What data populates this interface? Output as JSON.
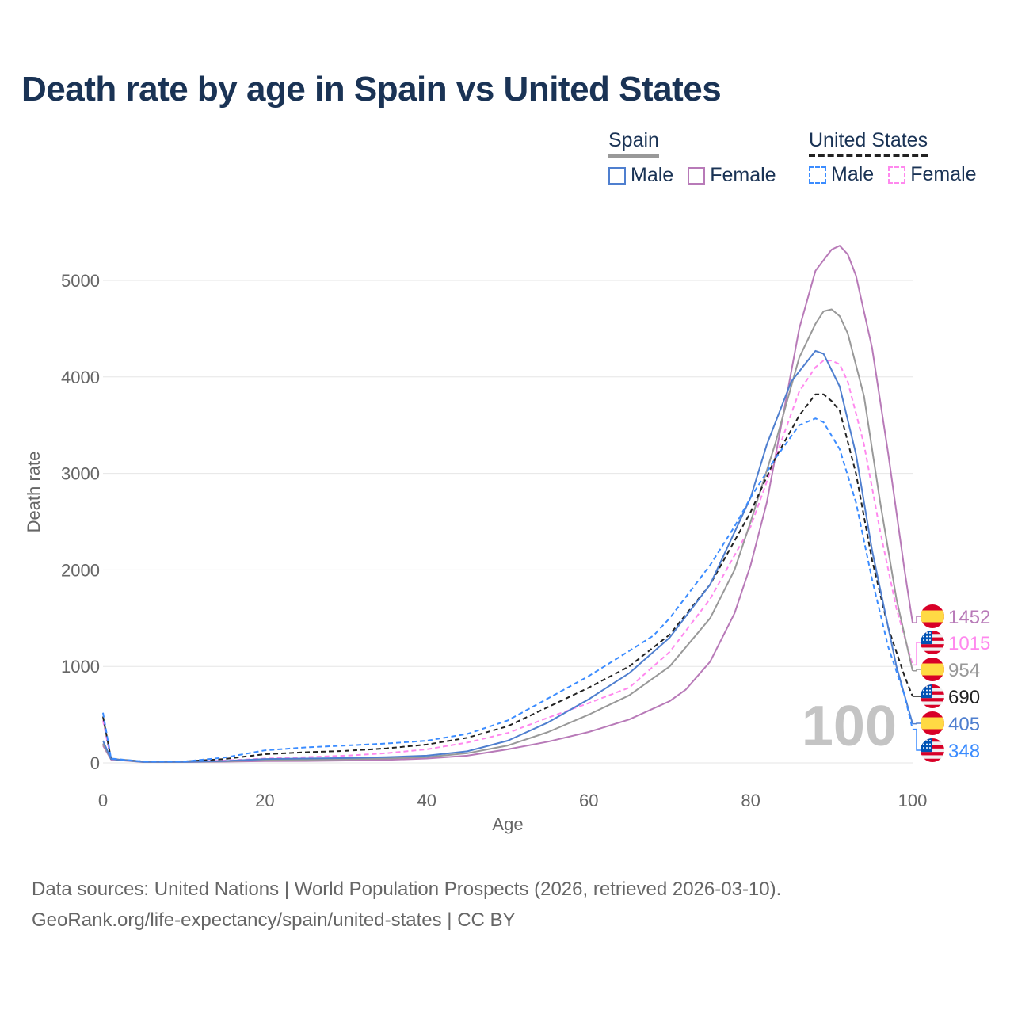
{
  "title": "Death rate by age in Spain vs United States",
  "legend": {
    "groups": [
      {
        "name": "Spain",
        "items": [
          "Male",
          "Female"
        ]
      },
      {
        "name": "United States",
        "items": [
          "Male",
          "Female"
        ]
      }
    ]
  },
  "sources": [
    "Data sources: United Nations | World Population Prospects (2026, retrieved 2026-03-10).",
    "GeoRank.org/life-expectancy/spain/united-states | CC BY"
  ],
  "chart_data": {
    "type": "line",
    "xlabel": "Age",
    "ylabel": "Death rate",
    "xlim": [
      0,
      100
    ],
    "ylim": [
      0,
      5000
    ],
    "xticks": [
      0,
      20,
      40,
      60,
      80,
      100
    ],
    "yticks": [
      0,
      1000,
      2000,
      3000,
      4000,
      5000
    ],
    "grid": true,
    "legend_position": "top-right",
    "current_age_label": "100",
    "series": [
      {
        "name": "Spain Female",
        "country": "Spain",
        "color": "#b87ab8",
        "dash": false,
        "end_label": "1452",
        "points": [
          [
            0,
            180
          ],
          [
            1,
            35
          ],
          [
            5,
            8
          ],
          [
            10,
            8
          ],
          [
            15,
            12
          ],
          [
            20,
            18
          ],
          [
            25,
            20
          ],
          [
            30,
            25
          ],
          [
            35,
            30
          ],
          [
            40,
            45
          ],
          [
            45,
            75
          ],
          [
            50,
            140
          ],
          [
            55,
            220
          ],
          [
            60,
            320
          ],
          [
            65,
            450
          ],
          [
            70,
            640
          ],
          [
            72,
            760
          ],
          [
            75,
            1050
          ],
          [
            78,
            1550
          ],
          [
            80,
            2050
          ],
          [
            82,
            2700
          ],
          [
            84,
            3600
          ],
          [
            86,
            4500
          ],
          [
            88,
            5100
          ],
          [
            90,
            5320
          ],
          [
            91,
            5360
          ],
          [
            92,
            5270
          ],
          [
            93,
            5050
          ],
          [
            95,
            4300
          ],
          [
            97,
            3200
          ],
          [
            99,
            2000
          ],
          [
            100,
            1452
          ]
        ]
      },
      {
        "name": "United States Female",
        "country": "United States",
        "color": "#ff88ee",
        "dash": true,
        "end_label": "1015",
        "points": [
          [
            0,
            440
          ],
          [
            1,
            35
          ],
          [
            5,
            12
          ],
          [
            10,
            12
          ],
          [
            15,
            25
          ],
          [
            20,
            45
          ],
          [
            25,
            60
          ],
          [
            30,
            75
          ],
          [
            35,
            100
          ],
          [
            40,
            140
          ],
          [
            45,
            210
          ],
          [
            50,
            310
          ],
          [
            55,
            470
          ],
          [
            60,
            620
          ],
          [
            65,
            780
          ],
          [
            70,
            1150
          ],
          [
            75,
            1700
          ],
          [
            80,
            2450
          ],
          [
            83,
            3150
          ],
          [
            86,
            3850
          ],
          [
            88,
            4100
          ],
          [
            89,
            4170
          ],
          [
            90,
            4170
          ],
          [
            91,
            4130
          ],
          [
            92,
            3950
          ],
          [
            94,
            3300
          ],
          [
            96,
            2400
          ],
          [
            98,
            1600
          ],
          [
            100,
            1015
          ]
        ]
      },
      {
        "name": "Spain Total",
        "country": "Spain",
        "color": "#999999",
        "dash": false,
        "end_label": "954",
        "points": [
          [
            0,
            200
          ],
          [
            1,
            38
          ],
          [
            5,
            9
          ],
          [
            10,
            9
          ],
          [
            15,
            16
          ],
          [
            20,
            30
          ],
          [
            25,
            33
          ],
          [
            30,
            38
          ],
          [
            35,
            45
          ],
          [
            40,
            60
          ],
          [
            45,
            100
          ],
          [
            50,
            180
          ],
          [
            55,
            320
          ],
          [
            60,
            500
          ],
          [
            65,
            700
          ],
          [
            70,
            1000
          ],
          [
            75,
            1500
          ],
          [
            78,
            2000
          ],
          [
            80,
            2500
          ],
          [
            83,
            3300
          ],
          [
            86,
            4200
          ],
          [
            88,
            4550
          ],
          [
            89,
            4680
          ],
          [
            90,
            4700
          ],
          [
            91,
            4630
          ],
          [
            92,
            4450
          ],
          [
            94,
            3800
          ],
          [
            96,
            2700
          ],
          [
            98,
            1700
          ],
          [
            100,
            954
          ]
        ]
      },
      {
        "name": "United States Total",
        "country": "United States",
        "color": "#222222",
        "dash": true,
        "end_label": "690",
        "points": [
          [
            0,
            480
          ],
          [
            1,
            40
          ],
          [
            5,
            15
          ],
          [
            10,
            15
          ],
          [
            15,
            40
          ],
          [
            20,
            90
          ],
          [
            25,
            110
          ],
          [
            30,
            125
          ],
          [
            35,
            150
          ],
          [
            40,
            190
          ],
          [
            45,
            260
          ],
          [
            50,
            380
          ],
          [
            55,
            580
          ],
          [
            60,
            780
          ],
          [
            65,
            1000
          ],
          [
            70,
            1330
          ],
          [
            75,
            1850
          ],
          [
            80,
            2600
          ],
          [
            83,
            3150
          ],
          [
            86,
            3600
          ],
          [
            88,
            3820
          ],
          [
            89,
            3820
          ],
          [
            90,
            3750
          ],
          [
            91,
            3650
          ],
          [
            93,
            3000
          ],
          [
            95,
            2100
          ],
          [
            97,
            1400
          ],
          [
            99,
            900
          ],
          [
            100,
            690
          ]
        ]
      },
      {
        "name": "Spain Male",
        "country": "Spain",
        "color": "#4f7fcf",
        "dash": false,
        "end_label": "405",
        "points": [
          [
            0,
            230
          ],
          [
            1,
            40
          ],
          [
            5,
            10
          ],
          [
            10,
            10
          ],
          [
            15,
            20
          ],
          [
            20,
            40
          ],
          [
            25,
            45
          ],
          [
            30,
            50
          ],
          [
            35,
            60
          ],
          [
            40,
            75
          ],
          [
            45,
            120
          ],
          [
            50,
            230
          ],
          [
            55,
            420
          ],
          [
            60,
            660
          ],
          [
            65,
            930
          ],
          [
            70,
            1300
          ],
          [
            75,
            1850
          ],
          [
            80,
            2750
          ],
          [
            82,
            3300
          ],
          [
            85,
            3950
          ],
          [
            88,
            4270
          ],
          [
            89,
            4240
          ],
          [
            91,
            3900
          ],
          [
            93,
            3200
          ],
          [
            95,
            2200
          ],
          [
            98,
            1000
          ],
          [
            100,
            405
          ]
        ]
      },
      {
        "name": "United States Male",
        "country": "United States",
        "color": "#3b8cff",
        "dash": true,
        "end_label": "348",
        "points": [
          [
            0,
            520
          ],
          [
            1,
            45
          ],
          [
            5,
            15
          ],
          [
            10,
            15
          ],
          [
            15,
            55
          ],
          [
            18,
            100
          ],
          [
            20,
            130
          ],
          [
            25,
            160
          ],
          [
            30,
            180
          ],
          [
            35,
            200
          ],
          [
            40,
            230
          ],
          [
            45,
            300
          ],
          [
            50,
            440
          ],
          [
            55,
            670
          ],
          [
            60,
            900
          ],
          [
            65,
            1160
          ],
          [
            68,
            1320
          ],
          [
            70,
            1500
          ],
          [
            75,
            2050
          ],
          [
            78,
            2450
          ],
          [
            80,
            2750
          ],
          [
            83,
            3150
          ],
          [
            86,
            3500
          ],
          [
            88,
            3570
          ],
          [
            89,
            3530
          ],
          [
            91,
            3250
          ],
          [
            93,
            2700
          ],
          [
            95,
            1900
          ],
          [
            97,
            1200
          ],
          [
            99,
            700
          ],
          [
            100,
            348
          ]
        ]
      }
    ]
  }
}
